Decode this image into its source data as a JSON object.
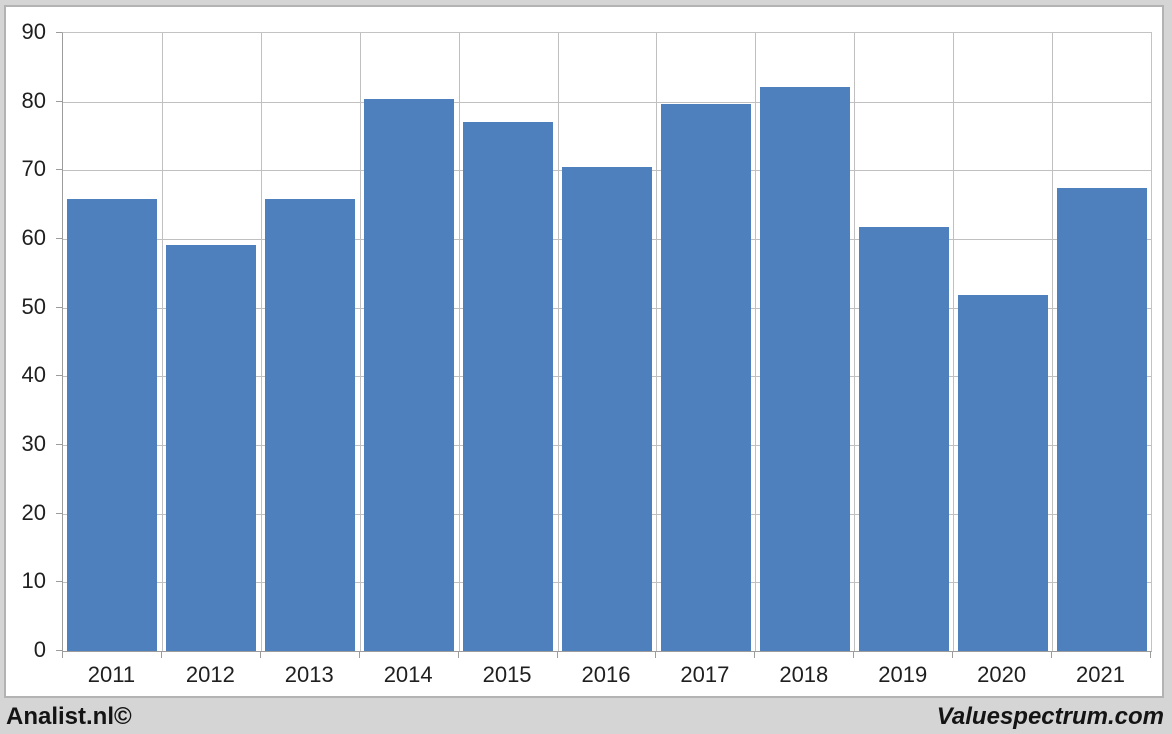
{
  "chart_data": {
    "type": "bar",
    "title": "",
    "categories": [
      "2011",
      "2012",
      "2013",
      "2014",
      "2015",
      "2016",
      "2017",
      "2018",
      "2019",
      "2020",
      "2021"
    ],
    "values": [
      65.8,
      59.1,
      65.8,
      80.4,
      77.0,
      70.5,
      79.7,
      82.2,
      61.8,
      51.9,
      67.4
    ],
    "xlabel": "",
    "ylabel": "",
    "ylim": [
      0,
      90
    ],
    "ytick_step": 10,
    "grid": true,
    "legend": "none",
    "bar_color": "#4d80bc",
    "gridline_color": "#c0c0c0",
    "axis_color": "#9c9c9c"
  },
  "footer": {
    "left": "Analist.nl©",
    "right": "Valuespectrum.com"
  }
}
